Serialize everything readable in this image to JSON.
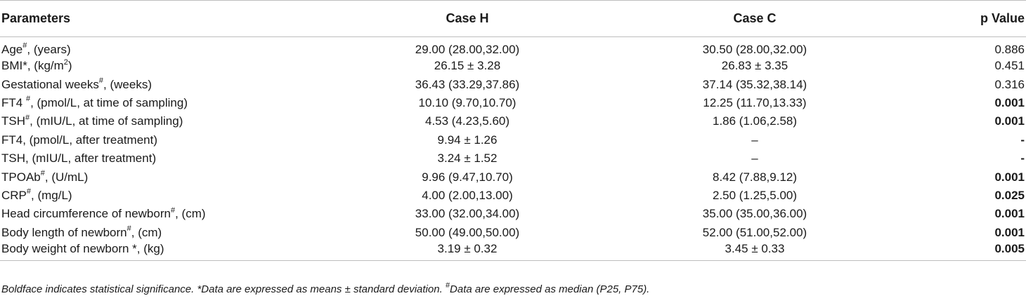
{
  "headers": {
    "parameters": "Parameters",
    "case_h": "Case H",
    "case_c": "Case C",
    "p_value": "p Value"
  },
  "rows": [
    {
      "label": "Age",
      "mark": "#",
      "suffix": ", (years)",
      "case_h": "29.00 (28.00,32.00)",
      "case_c": "30.50 (28.00,32.00)",
      "p": "0.886",
      "significant": false
    },
    {
      "label": "BMI*, (kg/m",
      "mark": "2",
      "suffix": ")",
      "case_h": "26.15 ± 3.28",
      "case_c": "26.83 ± 3.35",
      "p": "0.451",
      "significant": false
    },
    {
      "label": "Gestational weeks",
      "mark": "#",
      "suffix": ", (weeks)",
      "case_h": "36.43 (33.29,37.86)",
      "case_c": "37.14 (35.32,38.14)",
      "p": "0.316",
      "significant": false
    },
    {
      "label": "FT4 ",
      "mark": "#",
      "suffix": ", (pmol/L, at time of sampling)",
      "case_h": "10.10 (9.70,10.70)",
      "case_c": "12.25 (11.70,13.33)",
      "p": "0.001",
      "significant": true
    },
    {
      "label": "TSH",
      "mark": "#",
      "suffix": ", (mIU/L, at time of sampling)",
      "case_h": "4.53 (4.23,5.60)",
      "case_c": "1.86 (1.06,2.58)",
      "p": "0.001",
      "significant": true
    },
    {
      "label": "FT4, (pmol/L, after treatment)",
      "mark": "",
      "suffix": "",
      "case_h": "9.94 ± 1.26",
      "case_c": "–",
      "p": "-",
      "significant": true
    },
    {
      "label": "TSH, (mIU/L, after treatment)",
      "mark": "",
      "suffix": "",
      "case_h": "3.24 ± 1.52",
      "case_c": "–",
      "p": "-",
      "significant": true
    },
    {
      "label": "TPOAb",
      "mark": "#",
      "suffix": ", (U/mL)",
      "case_h": "9.96 (9.47,10.70)",
      "case_c": "8.42 (7.88,9.12)",
      "p": "0.001",
      "significant": true
    },
    {
      "label": "CRP",
      "mark": "#",
      "suffix": ", (mg/L)",
      "case_h": "4.00 (2.00,13.00)",
      "case_c": "2.50 (1.25,5.00)",
      "p": "0.025",
      "significant": true
    },
    {
      "label": "Head circumference of newborn",
      "mark": "#",
      "suffix": ", (cm)",
      "case_h": "33.00 (32.00,34.00)",
      "case_c": "35.00 (35.00,36.00)",
      "p": "0.001",
      "significant": true
    },
    {
      "label": "Body length of newborn",
      "mark": "#",
      "suffix": ", (cm)",
      "case_h": "50.00 (49.00,50.00)",
      "case_c": "52.00 (51.00,52.00)",
      "p": "0.001",
      "significant": true
    },
    {
      "label": "Body weight of newborn *, (kg)",
      "mark": "",
      "suffix": "",
      "case_h": "3.19 ± 0.32",
      "case_c": "3.45 ± 0.33",
      "p": "0.005",
      "significant": true
    }
  ],
  "footnote": {
    "part1": "Boldface indicates statistical significance. *Data are expressed as means ± standard deviation. ",
    "mark": "#",
    "part2": "Data are expressed as median (P25, P75)."
  }
}
